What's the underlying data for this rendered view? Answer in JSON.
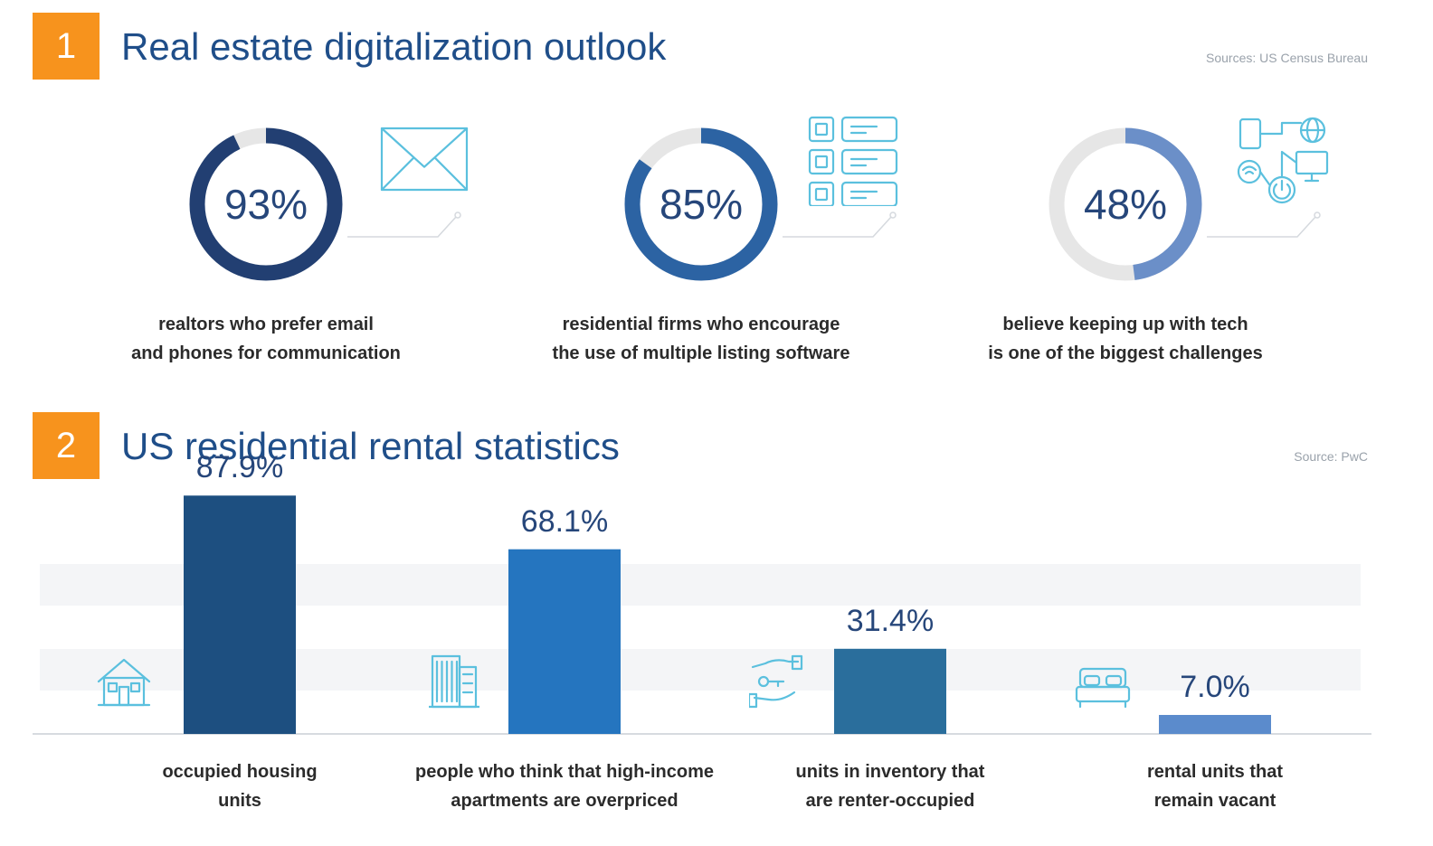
{
  "section1": {
    "number": "1",
    "title": "Real estate digitalization outlook",
    "source": "Sources: US Census Bureau",
    "stats": [
      {
        "value": 93,
        "label": "93%",
        "caption_line1": "realtors who prefer email",
        "caption_line2": "and phones for communication",
        "color": "#223f72",
        "icon": "envelope-icon"
      },
      {
        "value": 85,
        "label": "85%",
        "caption_line1": "residential firms who encourage",
        "caption_line2": "the use of multiple listing software",
        "color": "#2c63a3",
        "icon": "listing-software-icon"
      },
      {
        "value": 48,
        "label": "48%",
        "caption_line1": "believe keeping up with tech",
        "caption_line2": "is one of the biggest challenges",
        "color": "#6b8fc8",
        "icon": "devices-network-icon"
      }
    ]
  },
  "section2": {
    "number": "2",
    "title": "US residential rental statistics",
    "source": "Source: PwC"
  },
  "chart_data": {
    "type": "bar",
    "categories": [
      "occupied housing units",
      "people who think that high-income apartments are overpriced",
      "units in inventory that are renter-occupied",
      "rental units that remain vacant"
    ],
    "values": [
      87.9,
      68.1,
      31.4,
      7.0
    ],
    "value_labels": [
      "87.9%",
      "68.1%",
      "31.4%",
      "7.0%"
    ],
    "label_lines": [
      [
        "occupied housing",
        "units"
      ],
      [
        "people who think that high-income",
        "apartments are overpriced"
      ],
      [
        "units in inventory that",
        "are renter-occupied"
      ],
      [
        "rental units that",
        "remain vacant"
      ]
    ],
    "colors": [
      "#1d4f80",
      "#2575bf",
      "#2a6e9c",
      "#5b8bcc"
    ],
    "icons": [
      "house-icon",
      "office-building-icon",
      "hand-key-icon",
      "bed-icon"
    ],
    "ylim": [
      0,
      100
    ],
    "grid": "banded",
    "xlabel": "",
    "ylabel": ""
  },
  "colors": {
    "accent": "#f7931d",
    "title": "#1f4e89",
    "icon_stroke": "#5bc0de",
    "donut_track": "#e6e6e6"
  }
}
